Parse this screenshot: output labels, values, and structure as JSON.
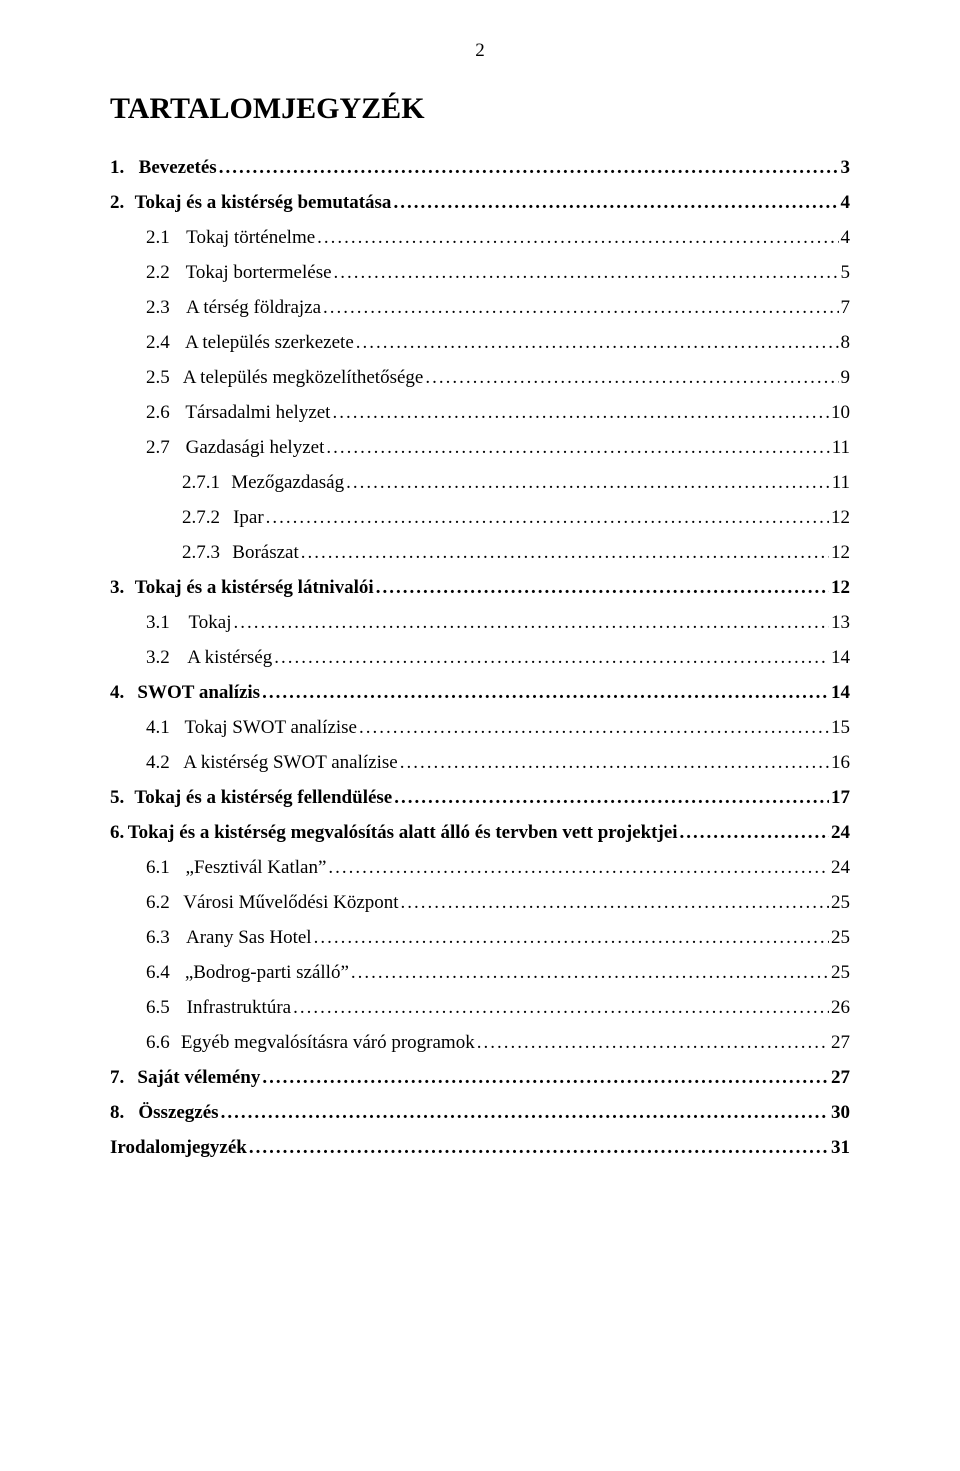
{
  "page_number": "2",
  "title": "TARTALOMJEGYZÉK",
  "font": {
    "family": "Times New Roman",
    "title_size_pt": 22,
    "body_size_pt": 14
  },
  "colors": {
    "text": "#000000",
    "background": "#ffffff"
  },
  "toc": [
    {
      "level": 0,
      "num": "1.",
      "label": "Bevezetés",
      "page": "3"
    },
    {
      "level": 0,
      "num": "2.",
      "label": "Tokaj és a kistérség bemutatása",
      "page": "4"
    },
    {
      "level": 1,
      "num": "2.1",
      "label": "Tokaj történelme",
      "page": "4"
    },
    {
      "level": 1,
      "num": "2.2",
      "label": "Tokaj bortermelése",
      "page": "5"
    },
    {
      "level": 1,
      "num": "2.3",
      "label": "A térség földrajza",
      "page": "7"
    },
    {
      "level": 1,
      "num": "2.4",
      "label": "A település szerkezete",
      "page": "8"
    },
    {
      "level": 1,
      "num": "2.5",
      "label": "A település megközelíthetősége",
      "page": "9"
    },
    {
      "level": 1,
      "num": "2.6",
      "label": "Társadalmi helyzet",
      "page": "10"
    },
    {
      "level": 1,
      "num": "2.7",
      "label": "Gazdasági helyzet",
      "page": "11"
    },
    {
      "level": 2,
      "num": "2.7.1",
      "label": "Mezőgazdaság",
      "page": "11"
    },
    {
      "level": 2,
      "num": "2.7.2",
      "label": "Ipar",
      "page": "12"
    },
    {
      "level": 2,
      "num": "2.7.3",
      "label": "Borászat",
      "page": "12"
    },
    {
      "level": 0,
      "num": "3.",
      "label": "Tokaj és a kistérség látnivalói",
      "page": "12"
    },
    {
      "level": 1,
      "num": "3.1",
      "label": "Tokaj",
      "page": "13"
    },
    {
      "level": 1,
      "num": "3.2",
      "label": "A kistérség",
      "page": "14"
    },
    {
      "level": 0,
      "num": "4.",
      "label": "SWOT analízis",
      "page": "14"
    },
    {
      "level": 1,
      "num": "4.1",
      "label": "Tokaj SWOT analízise",
      "page": "15"
    },
    {
      "level": 1,
      "num": "4.2",
      "label": "A kistérség SWOT analízise",
      "page": "16"
    },
    {
      "level": 0,
      "num": "5.",
      "label": "Tokaj és a kistérség fellendülése",
      "page": "17"
    },
    {
      "level": 0,
      "num": "6.",
      "label": "Tokaj és a kistérség megvalósítás alatt álló és tervben vett projektjei",
      "page": "24"
    },
    {
      "level": 1,
      "num": "6.1",
      "label": "„Fesztivál Katlan”",
      "page": "24"
    },
    {
      "level": 1,
      "num": "6.2",
      "label": "Városi Művelődési Központ",
      "page": "25"
    },
    {
      "level": 1,
      "num": "6.3",
      "label": "Arany Sas Hotel",
      "page": "25"
    },
    {
      "level": 1,
      "num": "6.4",
      "label": "„Bodrog-parti szálló”",
      "page": "25"
    },
    {
      "level": 1,
      "num": "6.5",
      "label": "Infrastruktúra",
      "page": "26"
    },
    {
      "level": 1,
      "num": "6.6",
      "label": "Egyéb megvalósításra váró programok",
      "page": "27"
    },
    {
      "level": 0,
      "num": "7.",
      "label": "Saját vélemény",
      "page": "27"
    },
    {
      "level": 0,
      "num": "8.",
      "label": "Összegzés",
      "page": "30"
    },
    {
      "level": -1,
      "num": "",
      "label": "Irodalomjegyzék",
      "page": "31"
    }
  ]
}
